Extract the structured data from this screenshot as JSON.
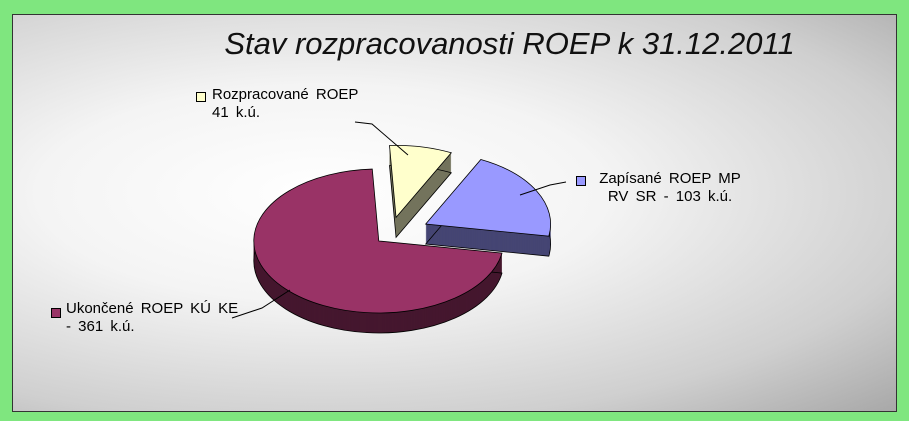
{
  "chart_data": {
    "type": "pie",
    "title": "Stav rozpracovanosti ROEP k 31.12.2011",
    "values": [
      41,
      103,
      361
    ],
    "value_labels": [
      "Rozpracované ROEP 41 k.ú.",
      "Zapísané ROEP MP RV SR - 103 k.ú.",
      "Ukončené ROEP KÚ KE - 361 k.ú."
    ],
    "colors": [
      "#ffffcc",
      "#9999ff",
      "#993366"
    ]
  }
}
